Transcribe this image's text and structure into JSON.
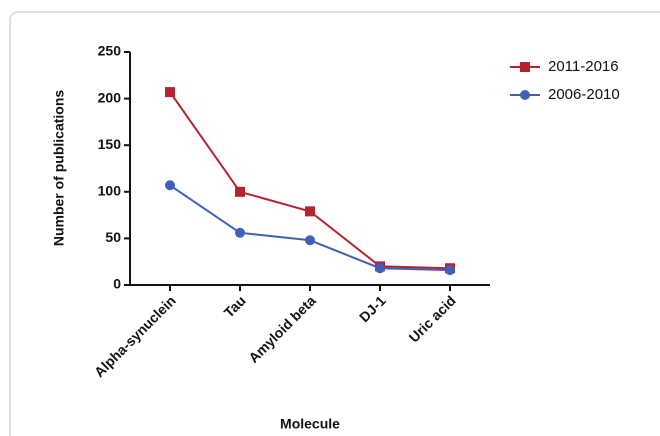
{
  "chart_data": {
    "type": "line",
    "x_label": "Molecule",
    "y_label": "Number of publications",
    "categories": [
      "Alpha-synuclein",
      "Tau",
      "Amyloid beta",
      "DJ-1",
      "Uric acid"
    ],
    "series": [
      {
        "name": "2011-2016",
        "color": "#b5232f",
        "marker": "square",
        "values": [
          207,
          100,
          79,
          20,
          18
        ]
      },
      {
        "name": "2006-2010",
        "color": "#3f5fb8",
        "marker": "circle",
        "values": [
          107,
          56,
          48,
          18,
          16
        ]
      }
    ],
    "ylim": [
      0,
      250
    ],
    "yticks": [
      0,
      50,
      100,
      150,
      200,
      250
    ],
    "grid": false,
    "legend": "top-right"
  }
}
